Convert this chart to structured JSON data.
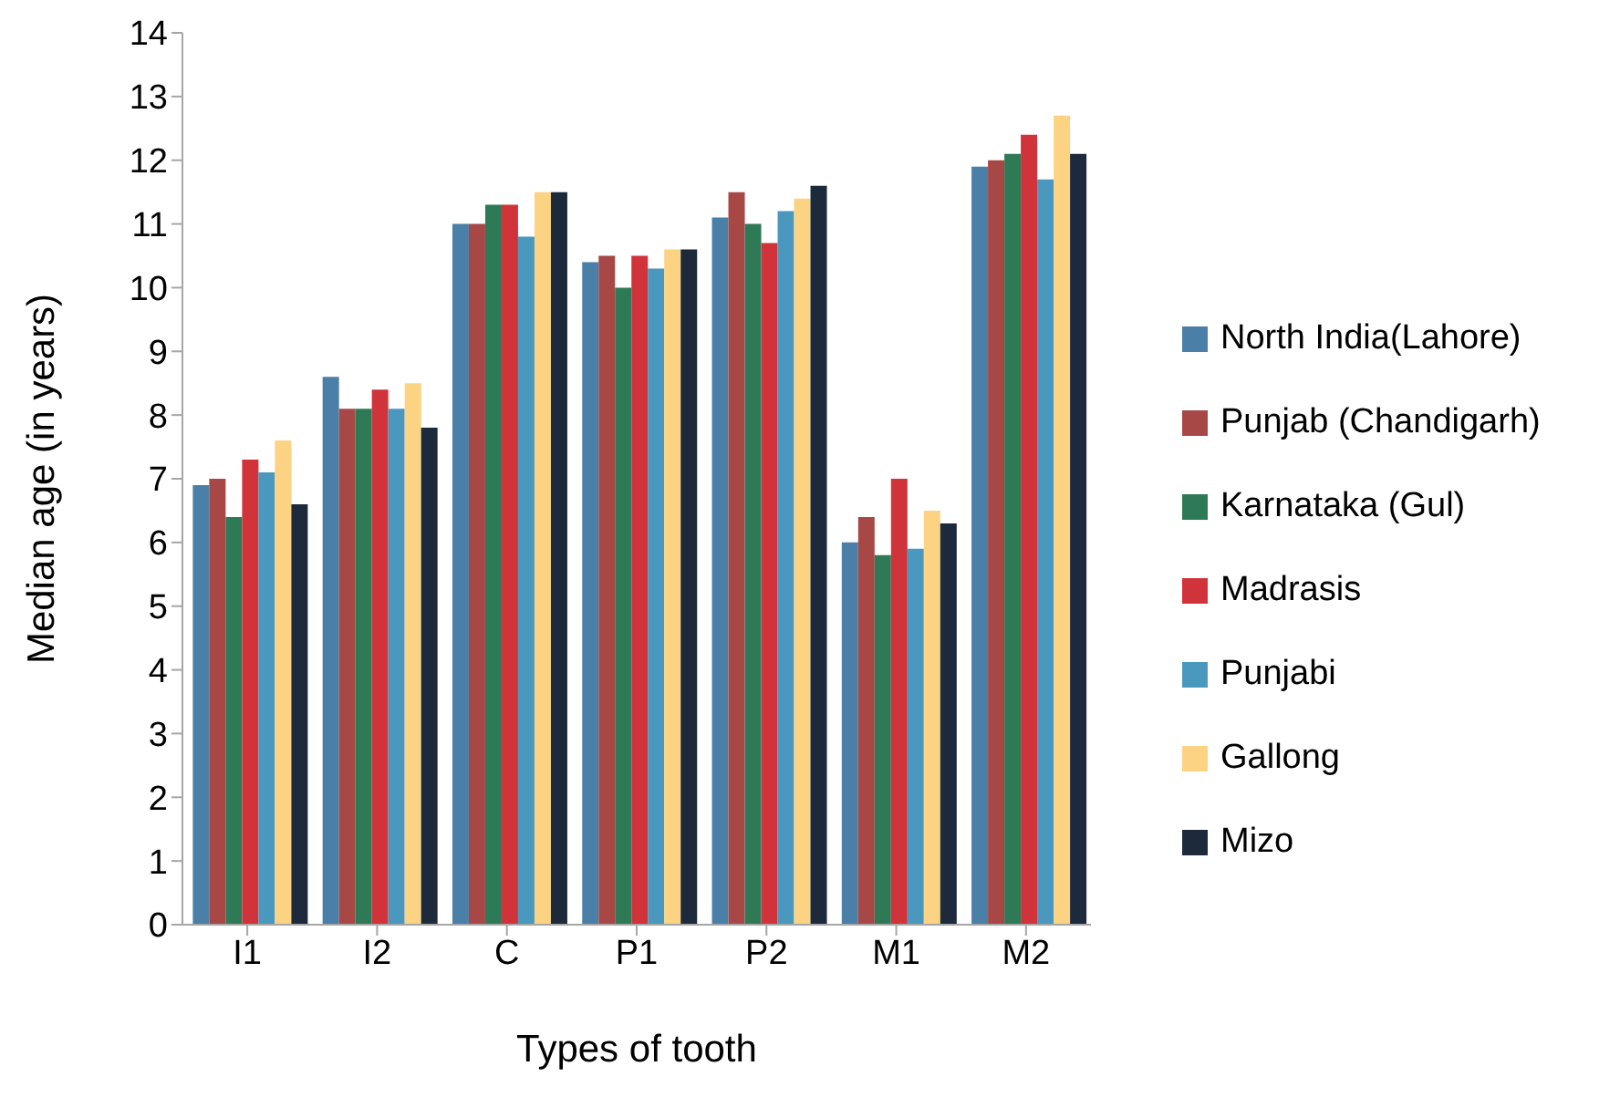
{
  "chart_data": {
    "type": "bar",
    "xlabel": "Types of tooth",
    "ylabel": "Median age (in years)",
    "categories": [
      "I1",
      "I2",
      "C",
      "P1",
      "P2",
      "M1",
      "M2"
    ],
    "series": [
      {
        "name": "North India(Lahore)",
        "color": "#4a7fa8",
        "values": [
          6.9,
          8.6,
          11.0,
          10.4,
          11.1,
          6.0,
          11.9
        ]
      },
      {
        "name": "Punjab (Chandigarh)",
        "color": "#a84846",
        "values": [
          7.0,
          8.1,
          11.0,
          10.5,
          11.5,
          6.4,
          12.0
        ]
      },
      {
        "name": "Karnataka (Gul)",
        "color": "#2e7a56",
        "values": [
          6.4,
          8.1,
          11.3,
          10.0,
          11.0,
          5.8,
          12.1
        ]
      },
      {
        "name": "Madrasis",
        "color": "#d0343a",
        "values": [
          7.3,
          8.4,
          11.3,
          10.5,
          10.7,
          7.0,
          12.4
        ]
      },
      {
        "name": "Punjabi",
        "color": "#4a98bd",
        "values": [
          7.1,
          8.1,
          10.8,
          10.3,
          11.2,
          5.9,
          11.7
        ]
      },
      {
        "name": "Gallong",
        "color": "#fcd382",
        "values": [
          7.6,
          8.5,
          11.5,
          10.6,
          11.4,
          6.5,
          12.7
        ]
      },
      {
        "name": "Mizo",
        "color": "#1c2a3c",
        "values": [
          6.6,
          7.8,
          11.5,
          10.6,
          11.6,
          6.3,
          12.1
        ]
      }
    ],
    "ylim": [
      0,
      14
    ],
    "yticks": [
      0,
      1,
      2,
      3,
      4,
      5,
      6,
      7,
      8,
      9,
      10,
      11,
      12,
      13,
      14
    ],
    "grid": false,
    "legend": "right"
  }
}
